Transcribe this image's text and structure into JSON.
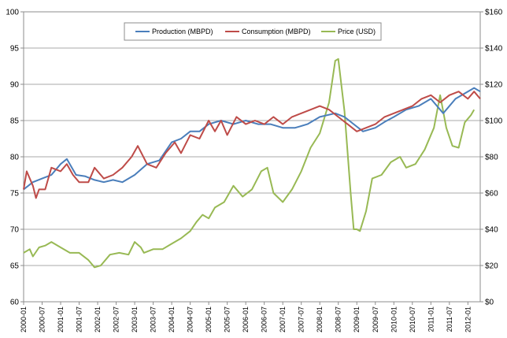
{
  "chart_data": {
    "type": "line",
    "title": "",
    "xlabel": "",
    "ylabel": "",
    "ylabel_right": "",
    "ylim": [
      60,
      100
    ],
    "ylim_right": [
      0,
      160
    ],
    "y_ticks": [
      "60",
      "65",
      "70",
      "75",
      "80",
      "85",
      "90",
      "95",
      "100"
    ],
    "y_right_ticks": [
      "$0",
      "$20",
      "$40",
      "$60",
      "$80",
      "$100",
      "$120",
      "$140",
      "$160"
    ],
    "grid": "horizontal",
    "legend_position": "top-center",
    "x_range": [
      "2000-01",
      "2012-05"
    ],
    "x_tick_labels": [
      "2000-01",
      "2000-07",
      "2001-01",
      "2001-07",
      "2002-01",
      "2002-07",
      "2003-01",
      "2003-07",
      "2004-01",
      "2004-07",
      "2005-01",
      "2005-07",
      "2006-01",
      "2006-07",
      "2007-01",
      "2007-07",
      "2008-01",
      "2008-07",
      "2009-01",
      "2009-07",
      "2010-01",
      "2010-07",
      "2011-01",
      "2011-07",
      "2012-01"
    ],
    "series": [
      {
        "name": "Production (MBPD)",
        "axis": "left",
        "color": "#4a7ebb",
        "points": [
          [
            "2000-01",
            75.5
          ],
          [
            "2000-04",
            76.5
          ],
          [
            "2000-07",
            77.0
          ],
          [
            "2000-10",
            77.5
          ],
          [
            "2001-01",
            79.0
          ],
          [
            "2001-03",
            79.7
          ],
          [
            "2001-06",
            77.5
          ],
          [
            "2001-09",
            77.3
          ],
          [
            "2001-12",
            76.8
          ],
          [
            "2002-03",
            76.5
          ],
          [
            "2002-06",
            76.8
          ],
          [
            "2002-09",
            76.5
          ],
          [
            "2003-01",
            77.5
          ],
          [
            "2003-05",
            79.0
          ],
          [
            "2003-09",
            79.5
          ],
          [
            "2004-01",
            82.0
          ],
          [
            "2004-04",
            82.5
          ],
          [
            "2004-07",
            83.5
          ],
          [
            "2004-10",
            83.5
          ],
          [
            "2005-01",
            84.5
          ],
          [
            "2005-05",
            85.0
          ],
          [
            "2005-09",
            84.5
          ],
          [
            "2006-01",
            85.0
          ],
          [
            "2006-05",
            84.5
          ],
          [
            "2006-09",
            84.5
          ],
          [
            "2007-01",
            84.0
          ],
          [
            "2007-05",
            84.0
          ],
          [
            "2007-09",
            84.5
          ],
          [
            "2008-01",
            85.5
          ],
          [
            "2008-06",
            86.0
          ],
          [
            "2008-09",
            85.5
          ],
          [
            "2008-12",
            84.5
          ],
          [
            "2009-03",
            83.5
          ],
          [
            "2009-07",
            84.0
          ],
          [
            "2009-10",
            84.8
          ],
          [
            "2010-01",
            85.5
          ],
          [
            "2010-05",
            86.5
          ],
          [
            "2010-09",
            87.0
          ],
          [
            "2011-01",
            88.0
          ],
          [
            "2011-05",
            86.0
          ],
          [
            "2011-09",
            88.0
          ],
          [
            "2012-01",
            89.0
          ],
          [
            "2012-03",
            89.5
          ],
          [
            "2012-05",
            89.0
          ]
        ]
      },
      {
        "name": "Consumption (MBPD)",
        "axis": "left",
        "color": "#be4b48",
        "points": [
          [
            "2000-01",
            75.5
          ],
          [
            "2000-02",
            78.0
          ],
          [
            "2000-04",
            76.0
          ],
          [
            "2000-05",
            74.3
          ],
          [
            "2000-06",
            75.5
          ],
          [
            "2000-08",
            75.5
          ],
          [
            "2000-10",
            78.5
          ],
          [
            "2001-01",
            78.0
          ],
          [
            "2001-03",
            79.0
          ],
          [
            "2001-05",
            77.5
          ],
          [
            "2001-07",
            76.5
          ],
          [
            "2001-10",
            76.5
          ],
          [
            "2001-12",
            78.5
          ],
          [
            "2002-03",
            77.0
          ],
          [
            "2002-06",
            77.5
          ],
          [
            "2002-09",
            78.5
          ],
          [
            "2002-12",
            80.0
          ],
          [
            "2003-02",
            81.5
          ],
          [
            "2003-05",
            79.0
          ],
          [
            "2003-08",
            78.5
          ],
          [
            "2003-11",
            80.5
          ],
          [
            "2004-02",
            82.0
          ],
          [
            "2004-04",
            80.5
          ],
          [
            "2004-07",
            83.0
          ],
          [
            "2004-10",
            82.5
          ],
          [
            "2005-01",
            85.0
          ],
          [
            "2005-03",
            83.5
          ],
          [
            "2005-05",
            85.0
          ],
          [
            "2005-07",
            83.0
          ],
          [
            "2005-10",
            85.5
          ],
          [
            "2006-01",
            84.5
          ],
          [
            "2006-04",
            85.0
          ],
          [
            "2006-07",
            84.5
          ],
          [
            "2006-10",
            85.5
          ],
          [
            "2007-01",
            84.5
          ],
          [
            "2007-04",
            85.5
          ],
          [
            "2007-07",
            86.0
          ],
          [
            "2007-10",
            86.5
          ],
          [
            "2008-01",
            87.0
          ],
          [
            "2008-04",
            86.5
          ],
          [
            "2008-07",
            85.5
          ],
          [
            "2008-10",
            84.5
          ],
          [
            "2009-01",
            83.5
          ],
          [
            "2009-04",
            84.0
          ],
          [
            "2009-07",
            84.5
          ],
          [
            "2009-10",
            85.5
          ],
          [
            "2010-01",
            86.0
          ],
          [
            "2010-04",
            86.5
          ],
          [
            "2010-07",
            87.0
          ],
          [
            "2010-10",
            88.0
          ],
          [
            "2011-01",
            88.5
          ],
          [
            "2011-04",
            87.5
          ],
          [
            "2011-07",
            88.5
          ],
          [
            "2011-10",
            89.0
          ],
          [
            "2012-01",
            88.0
          ],
          [
            "2012-03",
            89.0
          ],
          [
            "2012-05",
            88.0
          ]
        ]
      },
      {
        "name": "Price (USD)",
        "axis": "right",
        "color": "#98b954",
        "points": [
          [
            "2000-01",
            27
          ],
          [
            "2000-03",
            29
          ],
          [
            "2000-04",
            25
          ],
          [
            "2000-06",
            30
          ],
          [
            "2000-08",
            31
          ],
          [
            "2000-10",
            33
          ],
          [
            "2001-01",
            30
          ],
          [
            "2001-04",
            27
          ],
          [
            "2001-07",
            27
          ],
          [
            "2001-10",
            23
          ],
          [
            "2001-12",
            19
          ],
          [
            "2002-02",
            20
          ],
          [
            "2002-05",
            26
          ],
          [
            "2002-08",
            27
          ],
          [
            "2002-11",
            26
          ],
          [
            "2003-01",
            33
          ],
          [
            "2003-03",
            30
          ],
          [
            "2003-04",
            27
          ],
          [
            "2003-07",
            29
          ],
          [
            "2003-10",
            29
          ],
          [
            "2004-01",
            32
          ],
          [
            "2004-04",
            35
          ],
          [
            "2004-07",
            39
          ],
          [
            "2004-09",
            44
          ],
          [
            "2004-11",
            48
          ],
          [
            "2005-01",
            46
          ],
          [
            "2005-03",
            52
          ],
          [
            "2005-06",
            55
          ],
          [
            "2005-09",
            64
          ],
          [
            "2005-12",
            58
          ],
          [
            "2006-03",
            62
          ],
          [
            "2006-06",
            72
          ],
          [
            "2006-08",
            74
          ],
          [
            "2006-10",
            60
          ],
          [
            "2007-01",
            55
          ],
          [
            "2007-04",
            62
          ],
          [
            "2007-07",
            72
          ],
          [
            "2007-10",
            85
          ],
          [
            "2008-01",
            93
          ],
          [
            "2008-04",
            110
          ],
          [
            "2008-06",
            133
          ],
          [
            "2008-07",
            134
          ],
          [
            "2008-09",
            105
          ],
          [
            "2008-11",
            60
          ],
          [
            "2008-12",
            40
          ],
          [
            "2009-01",
            40
          ],
          [
            "2009-02",
            39
          ],
          [
            "2009-04",
            50
          ],
          [
            "2009-06",
            68
          ],
          [
            "2009-09",
            70
          ],
          [
            "2009-12",
            77
          ],
          [
            "2010-03",
            80
          ],
          [
            "2010-05",
            74
          ],
          [
            "2010-08",
            76
          ],
          [
            "2010-11",
            84
          ],
          [
            "2011-02",
            96
          ],
          [
            "2011-04",
            114
          ],
          [
            "2011-06",
            96
          ],
          [
            "2011-08",
            86
          ],
          [
            "2011-10",
            85
          ],
          [
            "2011-12",
            99
          ],
          [
            "2012-02",
            103
          ],
          [
            "2012-03",
            106
          ]
        ]
      }
    ]
  }
}
